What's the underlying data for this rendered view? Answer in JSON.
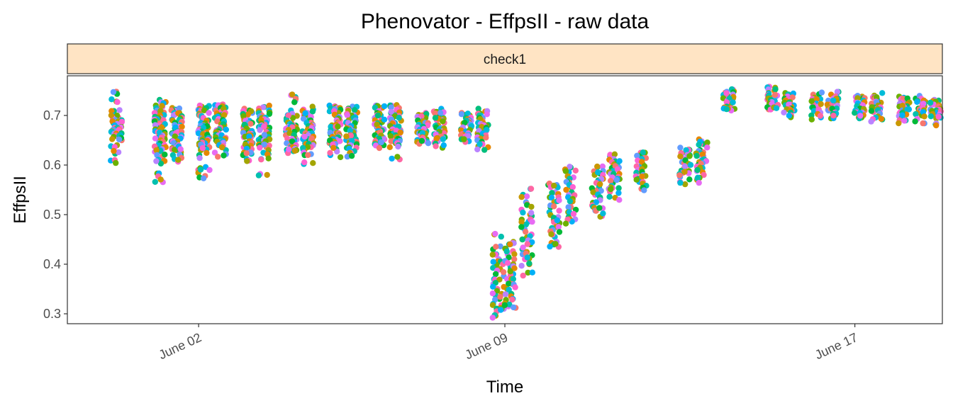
{
  "chart_data": {
    "type": "scatter",
    "title": "Phenovator - EffpsII - raw data",
    "facet_label": "check1",
    "facet_strip_color": "#FFE4C4",
    "xlabel": "Time",
    "ylabel": "EffpsII",
    "x_tick_labels": [
      "June 02",
      "June 09",
      "June 17"
    ],
    "x_ticks": [
      "2019-06-02",
      "2019-06-09",
      "2019-06-17"
    ],
    "y_ticks": [
      0.3,
      0.4,
      0.5,
      0.6,
      0.7
    ],
    "ylim": [
      0.28,
      0.78
    ],
    "xlim": [
      "2019-05-30",
      "2019-06-19"
    ],
    "grid": false,
    "palette": [
      "#F8766D",
      "#E58700",
      "#C99800",
      "#A3A500",
      "#6BB100",
      "#00BA38",
      "#00BF7D",
      "#00C0AF",
      "#00BCD8",
      "#00B0F6",
      "#619CFF",
      "#B983FF",
      "#E76BF3",
      "#FD61D1",
      "#FF67A4"
    ],
    "groups": [
      {
        "date": "2019-05-31",
        "values": [
          0.748,
          0.728,
          0.709,
          0.7,
          0.695,
          0.69,
          0.688,
          0.685,
          0.68,
          0.676,
          0.672,
          0.668,
          0.664,
          0.66,
          0.655,
          0.65,
          0.64,
          0.623,
          0.609
        ]
      },
      {
        "date": "2019-06-01",
        "values": [
          0.727,
          0.72,
          0.715,
          0.71,
          0.705,
          0.7,
          0.695,
          0.69,
          0.685,
          0.68,
          0.676,
          0.672,
          0.668,
          0.664,
          0.66,
          0.656,
          0.652,
          0.648,
          0.644,
          0.64,
          0.636,
          0.632,
          0.628,
          0.62,
          0.612,
          0.608,
          0.583,
          0.566
        ]
      },
      {
        "date": "2019-06-01",
        "values": [
          0.715,
          0.71,
          0.705,
          0.7,
          0.695,
          0.69,
          0.685,
          0.68,
          0.676,
          0.672,
          0.668,
          0.664,
          0.66,
          0.656,
          0.652,
          0.648,
          0.644,
          0.64,
          0.636,
          0.632,
          0.626,
          0.62,
          0.612
        ]
      },
      {
        "date": "2019-06-02",
        "values": [
          0.718,
          0.715,
          0.71,
          0.705,
          0.7,
          0.695,
          0.69,
          0.685,
          0.68,
          0.676,
          0.672,
          0.668,
          0.664,
          0.66,
          0.656,
          0.652,
          0.648,
          0.644,
          0.64,
          0.636,
          0.63,
          0.62,
          0.596,
          0.59,
          0.578
        ]
      },
      {
        "date": "2019-06-02",
        "values": [
          0.72,
          0.716,
          0.712,
          0.708,
          0.704,
          0.7,
          0.695,
          0.69,
          0.685,
          0.68,
          0.676,
          0.672,
          0.668,
          0.664,
          0.66,
          0.656,
          0.652,
          0.648,
          0.644,
          0.64,
          0.636,
          0.63,
          0.622
        ]
      },
      {
        "date": "2019-06-03",
        "values": [
          0.71,
          0.705,
          0.7,
          0.695,
          0.69,
          0.685,
          0.68,
          0.676,
          0.672,
          0.668,
          0.664,
          0.66,
          0.656,
          0.652,
          0.648,
          0.644,
          0.64,
          0.636,
          0.632,
          0.625,
          0.62,
          0.612
        ]
      },
      {
        "date": "2019-06-03",
        "values": [
          0.717,
          0.71,
          0.705,
          0.7,
          0.695,
          0.69,
          0.685,
          0.68,
          0.676,
          0.672,
          0.668,
          0.664,
          0.66,
          0.656,
          0.652,
          0.648,
          0.644,
          0.64,
          0.636,
          0.63,
          0.622,
          0.612,
          0.582
        ]
      },
      {
        "date": "2019-06-04",
        "values": [
          0.737,
          0.73,
          0.705,
          0.7,
          0.695,
          0.69,
          0.685,
          0.68,
          0.676,
          0.672,
          0.668,
          0.664,
          0.66,
          0.656,
          0.652,
          0.648,
          0.644,
          0.64,
          0.636,
          0.63,
          0.628
        ]
      },
      {
        "date": "2019-06-04",
        "values": [
          0.712,
          0.705,
          0.7,
          0.695,
          0.69,
          0.685,
          0.68,
          0.676,
          0.672,
          0.668,
          0.664,
          0.66,
          0.656,
          0.652,
          0.648,
          0.644,
          0.64,
          0.636,
          0.63,
          0.62,
          0.602
        ]
      },
      {
        "date": "2019-06-05",
        "values": [
          0.72,
          0.715,
          0.71,
          0.705,
          0.7,
          0.695,
          0.69,
          0.685,
          0.68,
          0.676,
          0.672,
          0.668,
          0.664,
          0.66,
          0.656,
          0.652,
          0.648,
          0.644,
          0.64,
          0.632,
          0.62
        ]
      },
      {
        "date": "2019-06-05",
        "values": [
          0.718,
          0.712,
          0.706,
          0.7,
          0.695,
          0.69,
          0.685,
          0.68,
          0.676,
          0.672,
          0.668,
          0.664,
          0.66,
          0.656,
          0.652,
          0.648,
          0.644,
          0.64,
          0.636,
          0.628,
          0.617
        ]
      },
      {
        "date": "2019-06-06",
        "values": [
          0.72,
          0.715,
          0.71,
          0.705,
          0.7,
          0.695,
          0.69,
          0.685,
          0.68,
          0.676,
          0.672,
          0.668,
          0.664,
          0.66,
          0.656,
          0.652,
          0.648,
          0.644,
          0.64
        ]
      },
      {
        "date": "2019-06-06",
        "values": [
          0.72,
          0.715,
          0.71,
          0.705,
          0.7,
          0.695,
          0.69,
          0.685,
          0.68,
          0.676,
          0.672,
          0.668,
          0.664,
          0.66,
          0.656,
          0.652,
          0.648,
          0.644,
          0.64,
          0.613
        ]
      },
      {
        "date": "2019-06-07",
        "values": [
          0.705,
          0.7,
          0.695,
          0.69,
          0.685,
          0.68,
          0.676,
          0.672,
          0.668,
          0.664,
          0.66,
          0.656,
          0.652,
          0.648,
          0.644
        ]
      },
      {
        "date": "2019-06-07",
        "values": [
          0.708,
          0.704,
          0.7,
          0.695,
          0.69,
          0.685,
          0.68,
          0.676,
          0.672,
          0.668,
          0.664,
          0.66,
          0.656,
          0.652,
          0.648,
          0.638
        ]
      },
      {
        "date": "2019-06-08",
        "values": [
          0.705,
          0.7,
          0.695,
          0.69,
          0.685,
          0.68,
          0.676,
          0.672,
          0.668,
          0.664,
          0.66,
          0.656,
          0.652,
          0.648
        ]
      },
      {
        "date": "2019-06-08",
        "values": [
          0.708,
          0.704,
          0.7,
          0.695,
          0.69,
          0.685,
          0.68,
          0.676,
          0.672,
          0.668,
          0.664,
          0.66,
          0.656,
          0.65,
          0.642,
          0.636
        ]
      },
      {
        "date": "2019-06-08",
        "values": [
          0.46,
          0.43,
          0.42,
          0.41,
          0.4,
          0.39,
          0.38,
          0.37,
          0.36,
          0.35,
          0.34,
          0.33,
          0.32,
          0.31,
          0.305,
          0.296
        ]
      },
      {
        "date": "2019-06-09",
        "values": [
          0.445,
          0.44,
          0.43,
          0.42,
          0.41,
          0.4,
          0.39,
          0.38,
          0.37,
          0.36,
          0.35,
          0.34,
          0.33,
          0.315,
          0.312
        ]
      },
      {
        "date": "2019-06-09",
        "values": [
          0.552,
          0.54,
          0.525,
          0.51,
          0.5,
          0.49,
          0.48,
          0.47,
          0.46,
          0.45,
          0.44,
          0.43,
          0.42,
          0.41,
          0.4,
          0.383
        ]
      },
      {
        "date": "2019-06-10",
        "values": [
          0.56,
          0.555,
          0.545,
          0.535,
          0.525,
          0.515,
          0.505,
          0.495,
          0.485,
          0.475,
          0.465,
          0.455,
          0.445,
          0.435
        ]
      },
      {
        "date": "2019-06-10",
        "values": [
          0.595,
          0.585,
          0.575,
          0.565,
          0.555,
          0.545,
          0.535,
          0.525,
          0.515,
          0.505,
          0.495,
          0.486
        ]
      },
      {
        "date": "2019-06-11",
        "values": [
          0.596,
          0.588,
          0.58,
          0.572,
          0.564,
          0.556,
          0.548,
          0.54,
          0.532,
          0.524,
          0.516,
          0.508,
          0.497
        ]
      },
      {
        "date": "2019-06-11",
        "values": [
          0.618,
          0.612,
          0.606,
          0.6,
          0.594,
          0.588,
          0.582,
          0.576,
          0.57,
          0.564,
          0.558,
          0.552,
          0.546,
          0.534
        ]
      },
      {
        "date": "2019-06-12",
        "values": [
          0.625,
          0.62,
          0.614,
          0.608,
          0.602,
          0.596,
          0.59,
          0.584,
          0.578,
          0.572,
          0.566,
          0.56,
          0.552
        ]
      },
      {
        "date": "2019-06-13",
        "values": [
          0.635,
          0.63,
          0.624,
          0.618,
          0.612,
          0.606,
          0.6,
          0.594,
          0.588,
          0.582,
          0.576,
          0.566
        ]
      },
      {
        "date": "2019-06-13",
        "values": [
          0.648,
          0.642,
          0.636,
          0.63,
          0.624,
          0.618,
          0.612,
          0.606,
          0.6,
          0.594,
          0.588,
          0.58,
          0.57
        ]
      },
      {
        "date": "2019-06-14",
        "values": [
          0.752,
          0.746,
          0.742,
          0.738,
          0.734,
          0.73,
          0.726,
          0.722,
          0.718,
          0.714,
          0.71
        ]
      },
      {
        "date": "2019-06-15",
        "values": [
          0.758,
          0.75,
          0.745,
          0.74,
          0.736,
          0.732,
          0.728,
          0.724,
          0.72,
          0.716,
          0.712
        ]
      },
      {
        "date": "2019-06-15",
        "values": [
          0.742,
          0.738,
          0.734,
          0.73,
          0.726,
          0.722,
          0.718,
          0.714,
          0.71,
          0.706,
          0.7
        ]
      },
      {
        "date": "2019-06-16",
        "values": [
          0.742,
          0.736,
          0.73,
          0.724,
          0.718,
          0.712,
          0.706,
          0.7,
          0.696
        ]
      },
      {
        "date": "2019-06-16",
        "values": [
          0.742,
          0.738,
          0.734,
          0.73,
          0.726,
          0.722,
          0.718,
          0.714,
          0.71,
          0.706,
          0.7,
          0.694
        ]
      },
      {
        "date": "2019-06-17",
        "values": [
          0.738,
          0.734,
          0.73,
          0.726,
          0.722,
          0.718,
          0.714,
          0.71,
          0.706,
          0.7,
          0.696
        ]
      },
      {
        "date": "2019-06-17",
        "values": [
          0.74,
          0.736,
          0.732,
          0.728,
          0.724,
          0.72,
          0.716,
          0.712,
          0.708,
          0.704,
          0.698,
          0.692
        ]
      },
      {
        "date": "2019-06-18",
        "values": [
          0.738,
          0.734,
          0.73,
          0.726,
          0.722,
          0.718,
          0.714,
          0.71,
          0.706,
          0.702,
          0.696,
          0.69
        ]
      },
      {
        "date": "2019-06-18",
        "values": [
          0.734,
          0.73,
          0.726,
          0.722,
          0.718,
          0.714,
          0.71,
          0.706,
          0.702,
          0.698,
          0.688
        ]
      },
      {
        "date": "2019-06-18",
        "values": [
          0.73,
          0.726,
          0.722,
          0.718,
          0.714,
          0.71,
          0.706,
          0.702,
          0.698,
          0.694,
          0.682
        ]
      }
    ]
  }
}
